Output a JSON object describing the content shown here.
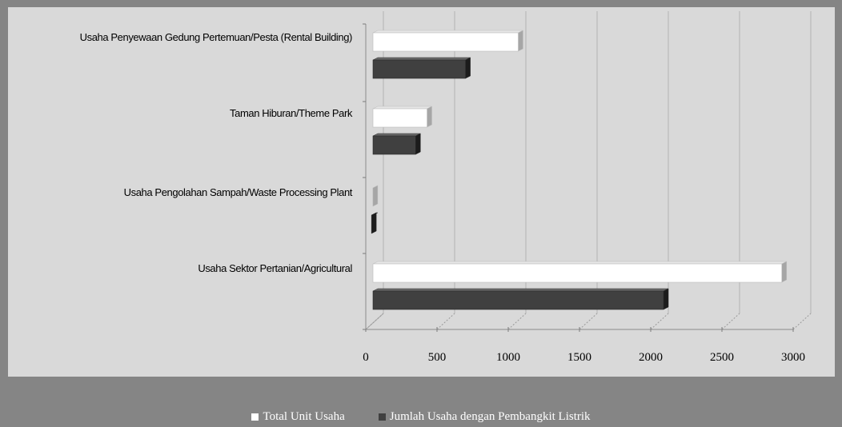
{
  "chart_data": {
    "type": "bar",
    "orientation": "horizontal",
    "categories": [
      "Usaha Penyewaan Gedung Pertemuan/Pesta (Rental Building)",
      "Taman Hiburan/Theme Park",
      "Usaha Pengolahan Sampah/Waste Processing Plant",
      "Usaha Sektor Pertanian/Agricultural"
    ],
    "series": [
      {
        "name": "Total Unit Usaha",
        "color": "#ffffff",
        "values": [
          1070,
          430,
          50,
          2920
        ]
      },
      {
        "name": "Jumlah Usaha dengan Pembangkit  Listrik",
        "color": "#404040",
        "values": [
          700,
          350,
          40,
          2090
        ]
      }
    ],
    "xlim": [
      0,
      3000
    ],
    "xticks": [
      0,
      500,
      1000,
      1500,
      2000,
      2500,
      3000
    ],
    "xtick_labels": [
      "0",
      "500",
      "1000",
      "1500",
      "2000",
      "2500",
      "3000"
    ],
    "grid": true,
    "style": "3d",
    "legend_position": "bottom"
  }
}
